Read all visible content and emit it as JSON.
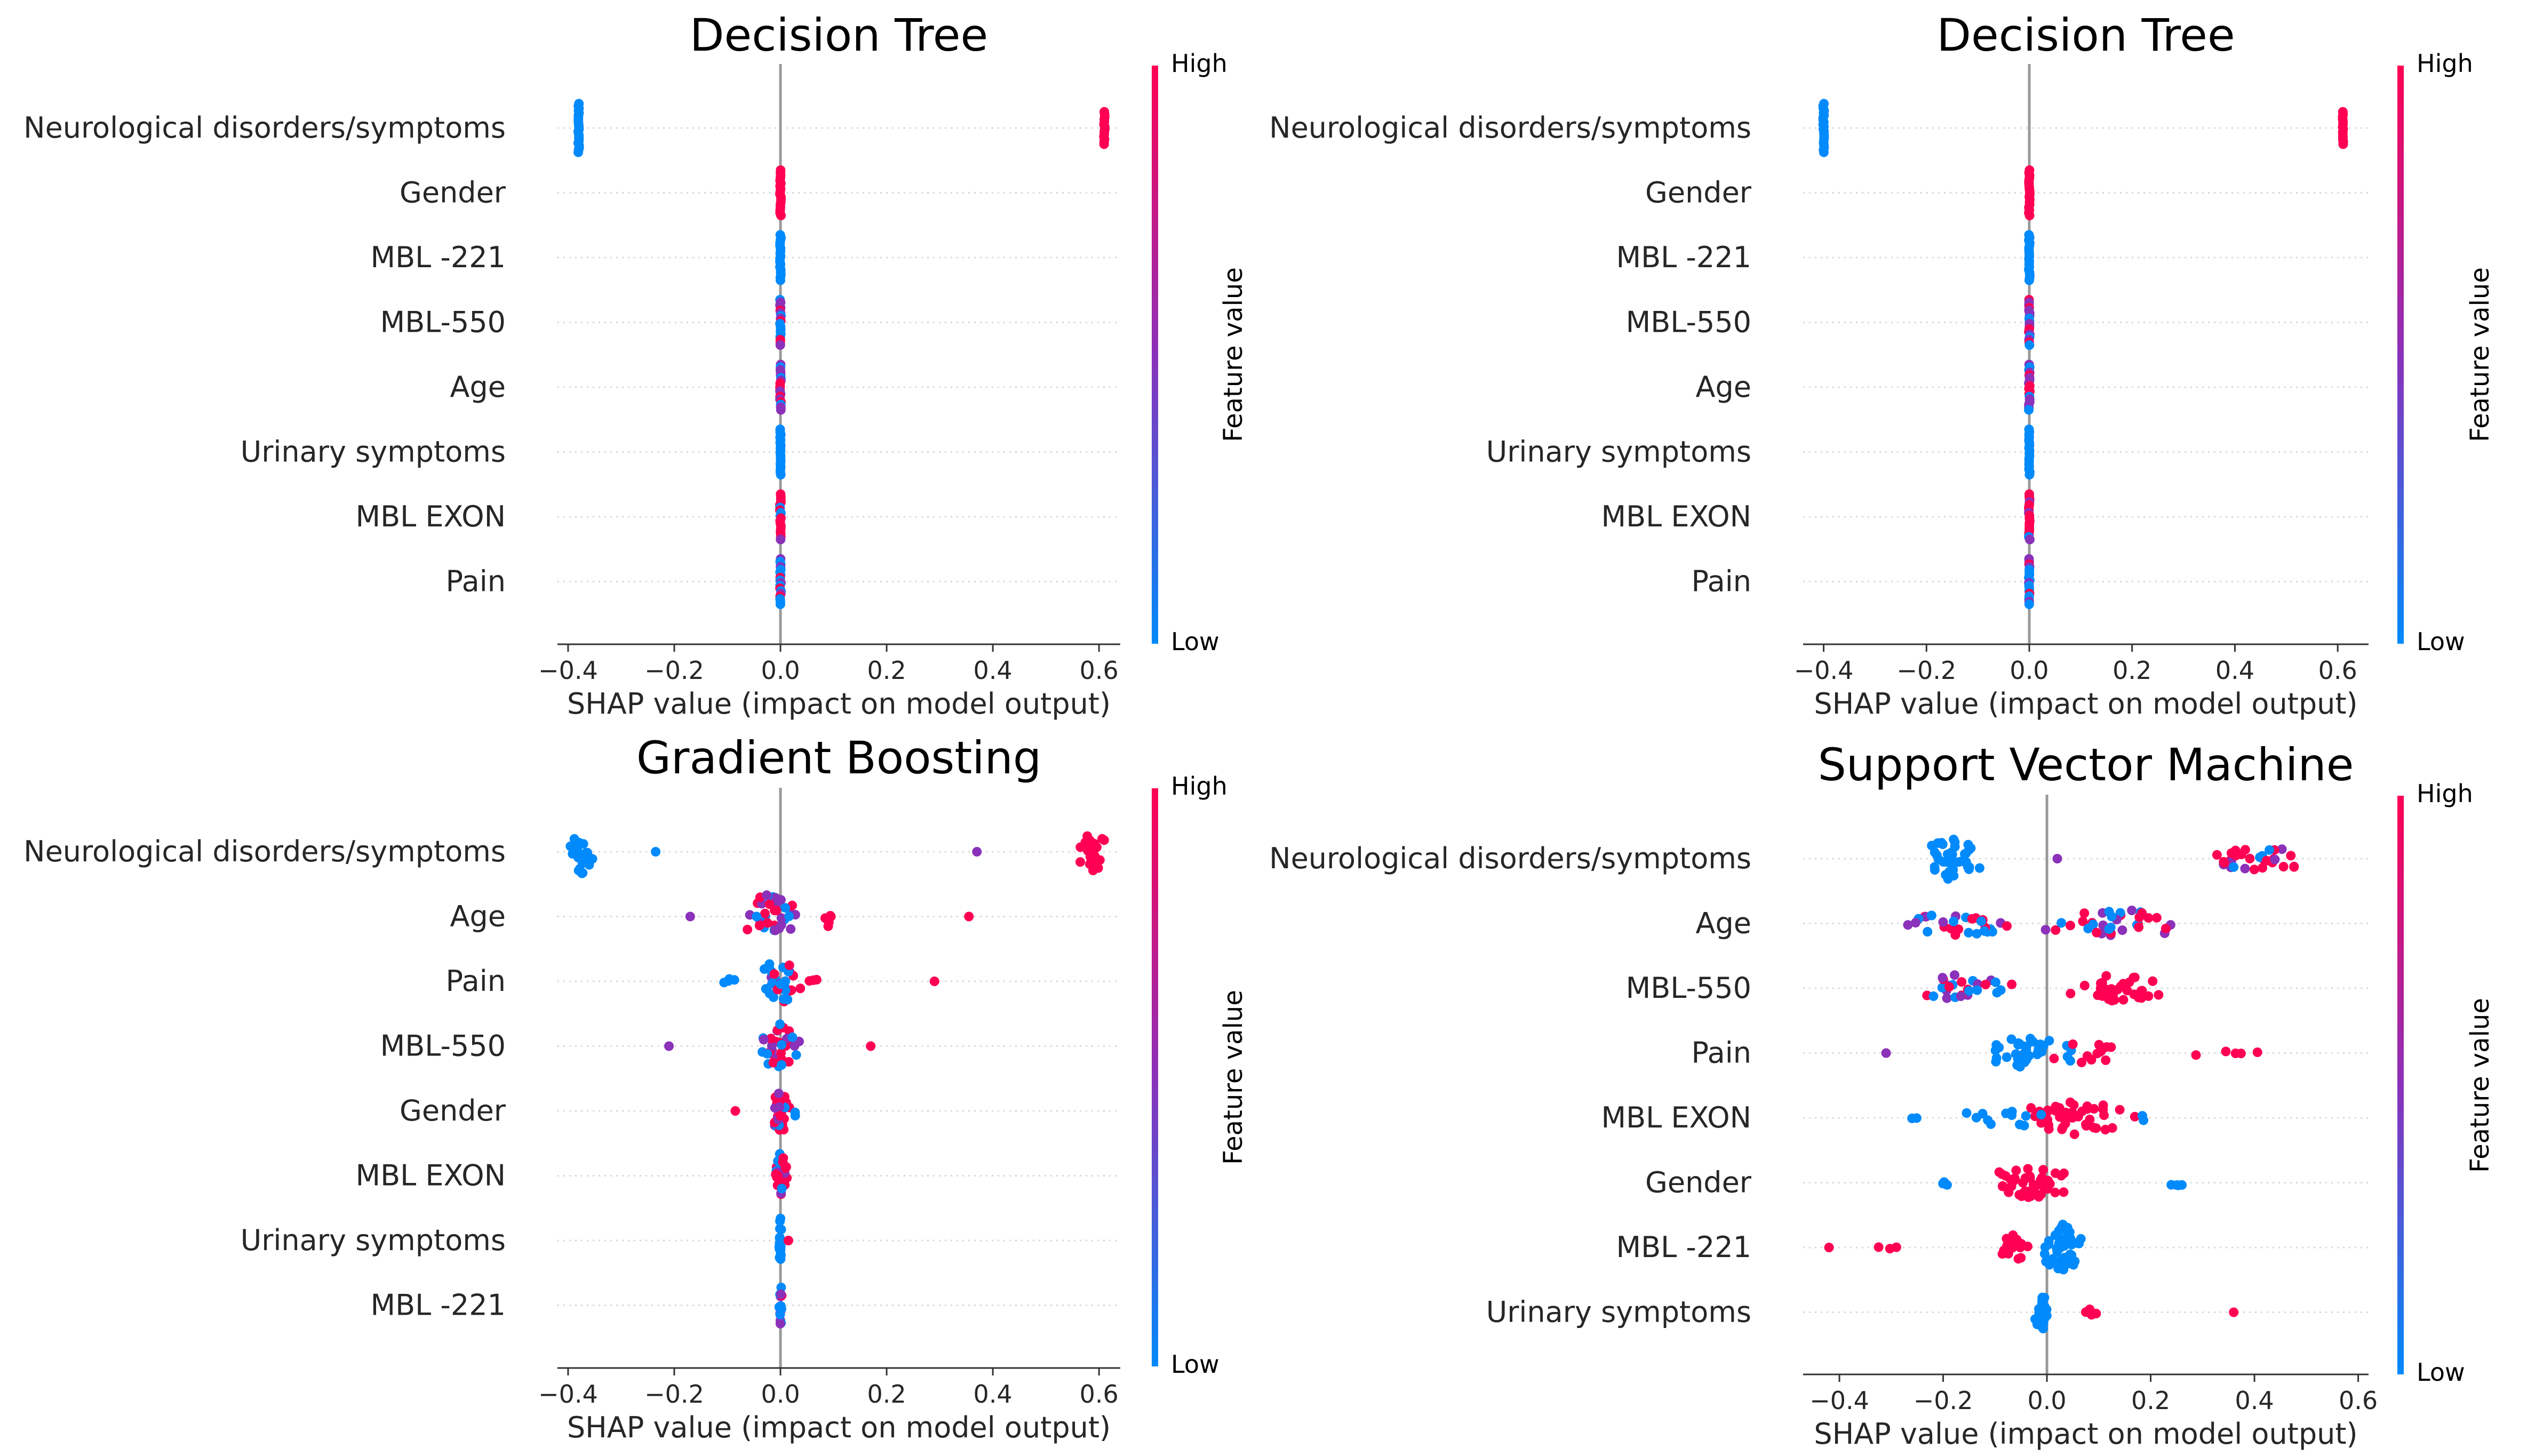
{
  "colors": {
    "low": "#008afb",
    "mid": "#8b31ba",
    "high": "#ff0052"
  },
  "chart_data": [
    {
      "type": "scatter",
      "title": "Decision Tree",
      "xlabel": "SHAP value (impact on model output)",
      "xlim": [
        -0.42,
        0.64
      ],
      "xticks": [
        -0.4,
        -0.2,
        0.0,
        0.2,
        0.4,
        0.6
      ],
      "xtick_labels": [
        "−0.4",
        "−0.2",
        "0.0",
        "0.2",
        "0.4",
        "0.6"
      ],
      "colorbar": {
        "label": "Feature value",
        "high": "High",
        "low": "Low"
      },
      "features": [
        {
          "name": "Neurological disorders/symptoms",
          "clusters": [
            {
              "x": -0.38,
              "n": 22,
              "spread": 0.002,
              "height": 0.75,
              "color": "low",
              "shape": "stack"
            },
            {
              "x": 0.61,
              "n": 14,
              "spread": 0.002,
              "height": 0.5,
              "color": "high",
              "shape": "stack"
            }
          ]
        },
        {
          "name": "Gender",
          "clusters": [
            {
              "x": 0.0,
              "n": 18,
              "spread": 0.001,
              "height": 0.7,
              "color": "high",
              "shape": "stack"
            }
          ]
        },
        {
          "name": "MBL -221",
          "clusters": [
            {
              "x": 0.0,
              "n": 18,
              "spread": 0.001,
              "height": 0.7,
              "color": "low",
              "shape": "stack"
            }
          ]
        },
        {
          "name": "MBL-550",
          "clusters": [
            {
              "x": 0.0,
              "n": 18,
              "spread": 0.001,
              "height": 0.7,
              "color": "mix",
              "shape": "stack"
            }
          ]
        },
        {
          "name": "Age",
          "clusters": [
            {
              "x": 0.0,
              "n": 18,
              "spread": 0.001,
              "height": 0.7,
              "color": "mix",
              "shape": "stack"
            }
          ]
        },
        {
          "name": "Urinary symptoms",
          "clusters": [
            {
              "x": 0.0,
              "n": 18,
              "spread": 0.001,
              "height": 0.7,
              "color": "low",
              "shape": "stack"
            }
          ]
        },
        {
          "name": "MBL EXON",
          "clusters": [
            {
              "x": 0.0,
              "n": 18,
              "spread": 0.001,
              "height": 0.7,
              "color": "mixhigh",
              "shape": "stack"
            }
          ]
        },
        {
          "name": "Pain",
          "clusters": [
            {
              "x": 0.0,
              "n": 18,
              "spread": 0.001,
              "height": 0.7,
              "color": "mixlow",
              "shape": "stack"
            }
          ]
        }
      ]
    },
    {
      "type": "scatter",
      "title": "Decision Tree",
      "xlabel": "SHAP value (impact on model output)",
      "xlim": [
        -0.44,
        0.66
      ],
      "xticks": [
        -0.4,
        -0.2,
        0.0,
        0.2,
        0.4,
        0.6
      ],
      "xtick_labels": [
        "−0.4",
        "−0.2",
        "0.0",
        "0.2",
        "0.4",
        "0.6"
      ],
      "colorbar": {
        "label": "Feature value",
        "high": "High",
        "low": "Low"
      },
      "features": [
        {
          "name": "Neurological disorders/symptoms",
          "clusters": [
            {
              "x": -0.4,
              "n": 22,
              "spread": 0.002,
              "height": 0.75,
              "color": "low",
              "shape": "stack"
            },
            {
              "x": 0.61,
              "n": 14,
              "spread": 0.002,
              "height": 0.5,
              "color": "high",
              "shape": "stack"
            }
          ]
        },
        {
          "name": "Gender",
          "clusters": [
            {
              "x": 0.0,
              "n": 18,
              "spread": 0.001,
              "height": 0.7,
              "color": "high",
              "shape": "stack"
            }
          ]
        },
        {
          "name": "MBL -221",
          "clusters": [
            {
              "x": 0.0,
              "n": 18,
              "spread": 0.001,
              "height": 0.7,
              "color": "low",
              "shape": "stack"
            }
          ]
        },
        {
          "name": "MBL-550",
          "clusters": [
            {
              "x": 0.0,
              "n": 18,
              "spread": 0.001,
              "height": 0.7,
              "color": "mix",
              "shape": "stack"
            }
          ]
        },
        {
          "name": "Age",
          "clusters": [
            {
              "x": 0.0,
              "n": 18,
              "spread": 0.001,
              "height": 0.7,
              "color": "mix",
              "shape": "stack"
            }
          ]
        },
        {
          "name": "Urinary symptoms",
          "clusters": [
            {
              "x": 0.0,
              "n": 18,
              "spread": 0.001,
              "height": 0.7,
              "color": "low",
              "shape": "stack"
            }
          ]
        },
        {
          "name": "MBL EXON",
          "clusters": [
            {
              "x": 0.0,
              "n": 18,
              "spread": 0.001,
              "height": 0.7,
              "color": "mixhigh",
              "shape": "stack"
            }
          ]
        },
        {
          "name": "Pain",
          "clusters": [
            {
              "x": 0.0,
              "n": 18,
              "spread": 0.001,
              "height": 0.7,
              "color": "mixlow",
              "shape": "stack"
            }
          ]
        }
      ]
    },
    {
      "type": "scatter",
      "title": "Gradient Boosting",
      "xlabel": "SHAP value (impact on model output)",
      "xlim": [
        -0.42,
        0.64
      ],
      "xticks": [
        -0.4,
        -0.2,
        0.0,
        0.2,
        0.4,
        0.6
      ],
      "xtick_labels": [
        "−0.4",
        "−0.2",
        "0.0",
        "0.2",
        "0.4",
        "0.6"
      ],
      "colorbar": {
        "label": "Feature value",
        "high": "High",
        "low": "Low"
      },
      "features": [
        {
          "name": "Neurological disorders/symptoms",
          "clusters": [
            {
              "x": -0.375,
              "n": 22,
              "spread": 0.025,
              "height": 0.7,
              "color": "low",
              "shape": "swarm"
            },
            {
              "x": 0.59,
              "n": 24,
              "spread": 0.035,
              "height": 0.6,
              "color": "high",
              "shape": "swarm"
            },
            {
              "x": -0.235,
              "n": 1,
              "spread": 0,
              "height": 0,
              "color": "low",
              "shape": "swarm"
            },
            {
              "x": 0.37,
              "n": 1,
              "spread": 0,
              "height": 0,
              "color": "mid",
              "shape": "swarm"
            }
          ]
        },
        {
          "name": "Age",
          "clusters": [
            {
              "x": -0.02,
              "n": 34,
              "spread": 0.07,
              "height": 0.7,
              "color": "mix",
              "shape": "swarm"
            },
            {
              "x": 0.09,
              "n": 5,
              "spread": 0.03,
              "height": 0.3,
              "color": "high",
              "shape": "swarm"
            },
            {
              "x": -0.17,
              "n": 1,
              "spread": 0,
              "height": 0,
              "color": "mid",
              "shape": "swarm"
            },
            {
              "x": 0.355,
              "n": 1,
              "spread": 0,
              "height": 0,
              "color": "high",
              "shape": "swarm"
            }
          ]
        },
        {
          "name": "Pain",
          "clusters": [
            {
              "x": 0.0,
              "n": 30,
              "spread": 0.05,
              "height": 0.7,
              "color": "mixlow",
              "shape": "swarm"
            },
            {
              "x": -0.09,
              "n": 4,
              "spread": 0.03,
              "height": 0.1,
              "color": "low",
              "shape": "swarm"
            },
            {
              "x": 0.06,
              "n": 3,
              "spread": 0.02,
              "height": 0.1,
              "color": "high",
              "shape": "swarm"
            },
            {
              "x": 0.29,
              "n": 1,
              "spread": 0,
              "height": 0,
              "color": "high",
              "shape": "swarm"
            }
          ]
        },
        {
          "name": "MBL-550",
          "clusters": [
            {
              "x": 0.0,
              "n": 36,
              "spread": 0.06,
              "height": 0.75,
              "color": "mix",
              "shape": "swarm"
            },
            {
              "x": -0.21,
              "n": 1,
              "spread": 0,
              "height": 0,
              "color": "mid",
              "shape": "swarm"
            },
            {
              "x": 0.17,
              "n": 1,
              "spread": 0,
              "height": 0,
              "color": "high",
              "shape": "swarm"
            }
          ]
        },
        {
          "name": "Gender",
          "clusters": [
            {
              "x": 0.0,
              "n": 26,
              "spread": 0.025,
              "height": 0.7,
              "color": "mixhigh",
              "shape": "swarm"
            },
            {
              "x": -0.085,
              "n": 1,
              "spread": 0,
              "height": 0,
              "color": "high",
              "shape": "swarm"
            },
            {
              "x": 0.03,
              "n": 2,
              "spread": 0.01,
              "height": 0.2,
              "color": "low",
              "shape": "swarm"
            }
          ]
        },
        {
          "name": "MBL EXON",
          "clusters": [
            {
              "x": 0.0,
              "n": 24,
              "spread": 0.02,
              "height": 0.7,
              "color": "mixhigh",
              "shape": "swarm"
            }
          ]
        },
        {
          "name": "Urinary symptoms",
          "clusters": [
            {
              "x": 0.0,
              "n": 18,
              "spread": 0.004,
              "height": 0.7,
              "color": "low",
              "shape": "swarm"
            },
            {
              "x": 0.015,
              "n": 1,
              "spread": 0,
              "height": 0,
              "color": "high",
              "shape": "swarm"
            }
          ]
        },
        {
          "name": "MBL -221",
          "clusters": [
            {
              "x": 0.0,
              "n": 18,
              "spread": 0.004,
              "height": 0.7,
              "color": "mixlow",
              "shape": "swarm"
            }
          ]
        }
      ]
    },
    {
      "type": "scatter",
      "title": "Support Vector Machine",
      "xlabel": "SHAP value (impact on model output)",
      "xlim": [
        -0.47,
        0.62
      ],
      "xticks": [
        -0.4,
        -0.2,
        0.0,
        0.2,
        0.4,
        0.6
      ],
      "xtick_labels": [
        "−0.4",
        "−0.2",
        "0.0",
        "0.2",
        "0.4",
        "0.6"
      ],
      "colorbar": {
        "label": "Feature value",
        "high": "High",
        "low": "Low"
      },
      "features": [
        {
          "name": "Neurological disorders/symptoms",
          "clusters": [
            {
              "x": -0.19,
              "n": 40,
              "spread": 0.07,
              "height": 0.65,
              "color": "low",
              "shape": "swarm"
            },
            {
              "x": 0.41,
              "n": 32,
              "spread": 0.15,
              "height": 0.35,
              "color": "mixhigh",
              "shape": "swarm"
            },
            {
              "x": 0.02,
              "n": 1,
              "spread": 0,
              "height": 0,
              "color": "mid",
              "shape": "swarm"
            }
          ]
        },
        {
          "name": "Age",
          "clusters": [
            {
              "x": -0.16,
              "n": 30,
              "spread": 0.14,
              "height": 0.4,
              "color": "mix",
              "shape": "swarm"
            },
            {
              "x": 0.14,
              "n": 36,
              "spread": 0.17,
              "height": 0.45,
              "color": "mix",
              "shape": "swarm"
            }
          ]
        },
        {
          "name": "MBL-550",
          "clusters": [
            {
              "x": -0.17,
              "n": 28,
              "spread": 0.13,
              "height": 0.45,
              "color": "mix",
              "shape": "swarm"
            },
            {
              "x": 0.13,
              "n": 34,
              "spread": 0.12,
              "height": 0.45,
              "color": "high",
              "shape": "swarm"
            }
          ]
        },
        {
          "name": "Pain",
          "clusters": [
            {
              "x": -0.04,
              "n": 40,
              "spread": 0.12,
              "height": 0.5,
              "color": "low",
              "shape": "swarm"
            },
            {
              "x": 0.08,
              "n": 12,
              "spread": 0.08,
              "height": 0.35,
              "color": "high",
              "shape": "swarm"
            },
            {
              "x": 0.34,
              "n": 5,
              "spread": 0.11,
              "height": 0.1,
              "color": "high",
              "shape": "swarm"
            },
            {
              "x": -0.31,
              "n": 1,
              "spread": 0,
              "height": 0,
              "color": "mid",
              "shape": "swarm"
            }
          ]
        },
        {
          "name": "MBL EXON",
          "clusters": [
            {
              "x": 0.05,
              "n": 44,
              "spread": 0.14,
              "height": 0.55,
              "color": "high",
              "shape": "swarm"
            },
            {
              "x": -0.08,
              "n": 12,
              "spread": 0.1,
              "height": 0.3,
              "color": "low",
              "shape": "swarm"
            },
            {
              "x": -0.26,
              "n": 2,
              "spread": 0.02,
              "height": 0.05,
              "color": "low",
              "shape": "swarm"
            },
            {
              "x": 0.19,
              "n": 2,
              "spread": 0.02,
              "height": 0.1,
              "color": "low",
              "shape": "swarm"
            }
          ]
        },
        {
          "name": "Gender",
          "clusters": [
            {
              "x": -0.03,
              "n": 44,
              "spread": 0.1,
              "height": 0.5,
              "color": "high",
              "shape": "swarm"
            },
            {
              "x": -0.19,
              "n": 3,
              "spread": 0.02,
              "height": 0.1,
              "color": "low",
              "shape": "swarm"
            },
            {
              "x": 0.25,
              "n": 4,
              "spread": 0.06,
              "height": 0.1,
              "color": "low",
              "shape": "swarm"
            }
          ]
        },
        {
          "name": "MBL -221",
          "clusters": [
            {
              "x": 0.03,
              "n": 44,
              "spread": 0.05,
              "height": 0.75,
              "color": "low",
              "shape": "swarm"
            },
            {
              "x": -0.07,
              "n": 16,
              "spread": 0.05,
              "height": 0.45,
              "color": "high",
              "shape": "swarm"
            },
            {
              "x": -0.3,
              "n": 3,
              "spread": 0.04,
              "height": 0.05,
              "color": "high",
              "shape": "swarm"
            },
            {
              "x": -0.42,
              "n": 1,
              "spread": 0,
              "height": 0,
              "color": "high",
              "shape": "swarm"
            }
          ]
        },
        {
          "name": "Urinary symptoms",
          "clusters": [
            {
              "x": -0.01,
              "n": 24,
              "spread": 0.015,
              "height": 0.6,
              "color": "low",
              "shape": "swarm"
            },
            {
              "x": 0.08,
              "n": 5,
              "spread": 0.03,
              "height": 0.1,
              "color": "high",
              "shape": "swarm"
            },
            {
              "x": 0.36,
              "n": 1,
              "spread": 0,
              "height": 0,
              "color": "high",
              "shape": "swarm"
            }
          ]
        }
      ]
    }
  ]
}
